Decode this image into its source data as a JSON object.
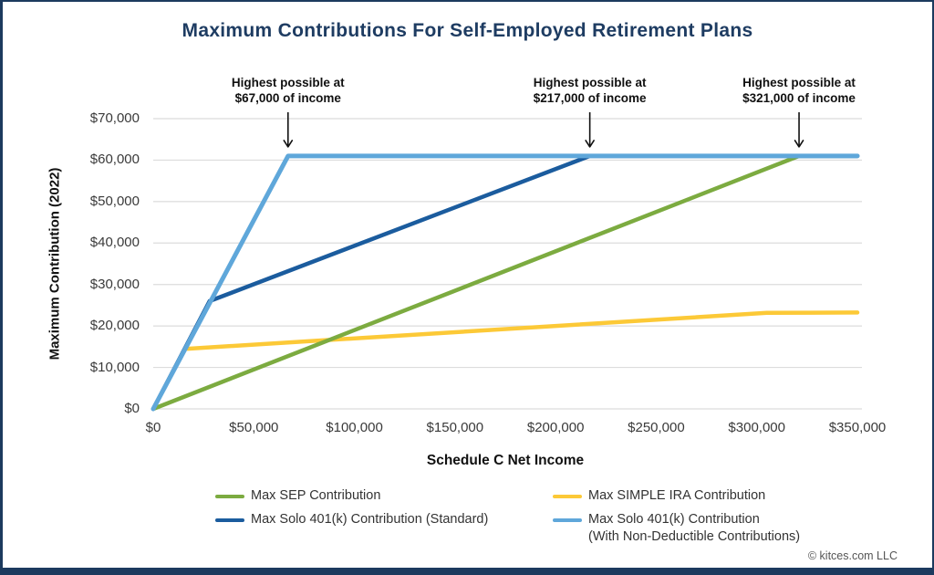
{
  "title": "Maximum Contributions For Self-Employed Retirement Plans",
  "footer": "© kitces.com LLC",
  "colors": {
    "frame_border": "#1c3a5e",
    "title_text": "#1e3c62",
    "gridline": "#dcdcdc",
    "annotation_arrow": "#111111"
  },
  "chart_data": {
    "type": "line",
    "title": "Maximum Contributions For Self-Employed Retirement Plans",
    "xlabel": "Schedule C Net Income",
    "ylabel": "Maximum Contribution (2022)",
    "xlim": [
      0,
      350000
    ],
    "ylim": [
      0,
      70000
    ],
    "grid": "horizontal",
    "legend_position": "bottom",
    "x_ticks": [
      {
        "value": 0,
        "label": "$0"
      },
      {
        "value": 50000,
        "label": "$50,000"
      },
      {
        "value": 100000,
        "label": "$100,000"
      },
      {
        "value": 150000,
        "label": "$150,000"
      },
      {
        "value": 200000,
        "label": "$200,000"
      },
      {
        "value": 250000,
        "label": "$250,000"
      },
      {
        "value": 300000,
        "label": "$300,000"
      },
      {
        "value": 350000,
        "label": "$350,000"
      }
    ],
    "y_ticks": [
      {
        "value": 0,
        "label": "$0"
      },
      {
        "value": 10000,
        "label": "$10,000"
      },
      {
        "value": 20000,
        "label": "$20,000"
      },
      {
        "value": 30000,
        "label": "$30,000"
      },
      {
        "value": 40000,
        "label": "$40,000"
      },
      {
        "value": 50000,
        "label": "$50,000"
      },
      {
        "value": 60000,
        "label": "$60,000"
      },
      {
        "value": 70000,
        "label": "$70,000"
      }
    ],
    "series": [
      {
        "name": "Max SEP Contribution",
        "color": "#7cab40",
        "stroke_width": 4.5,
        "z": 2,
        "points": [
          [
            0,
            0
          ],
          [
            321000,
            61000
          ],
          [
            350000,
            61000
          ]
        ]
      },
      {
        "name": "Max SIMPLE IRA Contribution",
        "color": "#fcc937",
        "stroke_width": 4.5,
        "z": 1,
        "points": [
          [
            17000,
            14500
          ],
          [
            305000,
            23150
          ],
          [
            350000,
            23250
          ]
        ]
      },
      {
        "name": "Max Solo 401(k) Contribution (Standard)",
        "color": "#1b5c9e",
        "stroke_width": 4.5,
        "z": 3,
        "points": [
          [
            0,
            0
          ],
          [
            28000,
            26000
          ],
          [
            217000,
            61000
          ],
          [
            350000,
            61000
          ]
        ]
      },
      {
        "name": "Max Solo 401(k) Contribution (With Non-Deductible Contributions)",
        "color": "#5fa7da",
        "stroke_width": 5,
        "z": 4,
        "points": [
          [
            0,
            0
          ],
          [
            67000,
            61000
          ],
          [
            350000,
            61000
          ]
        ]
      }
    ],
    "annotations": [
      {
        "x": 67000,
        "y": 61000,
        "lines": [
          "Highest possible at",
          "$67,000 of income"
        ]
      },
      {
        "x": 217000,
        "y": 61000,
        "lines": [
          "Highest possible at",
          "$217,000 of income"
        ]
      },
      {
        "x": 321000,
        "y": 61000,
        "lines": [
          "Highest possible at",
          "$321,000 of income"
        ]
      }
    ],
    "legend": {
      "items": [
        {
          "series": 0,
          "col": 0,
          "row": 0,
          "lines": [
            "Max SEP Contribution"
          ]
        },
        {
          "series": 1,
          "col": 1,
          "row": 0,
          "lines": [
            "Max SIMPLE IRA Contribution"
          ]
        },
        {
          "series": 2,
          "col": 0,
          "row": 1,
          "lines": [
            "Max Solo 401(k) Contribution (Standard)"
          ]
        },
        {
          "series": 3,
          "col": 1,
          "row": 1,
          "lines": [
            "Max Solo 401(k) Contribution",
            "(With Non-Deductible Contributions)"
          ]
        }
      ]
    }
  }
}
